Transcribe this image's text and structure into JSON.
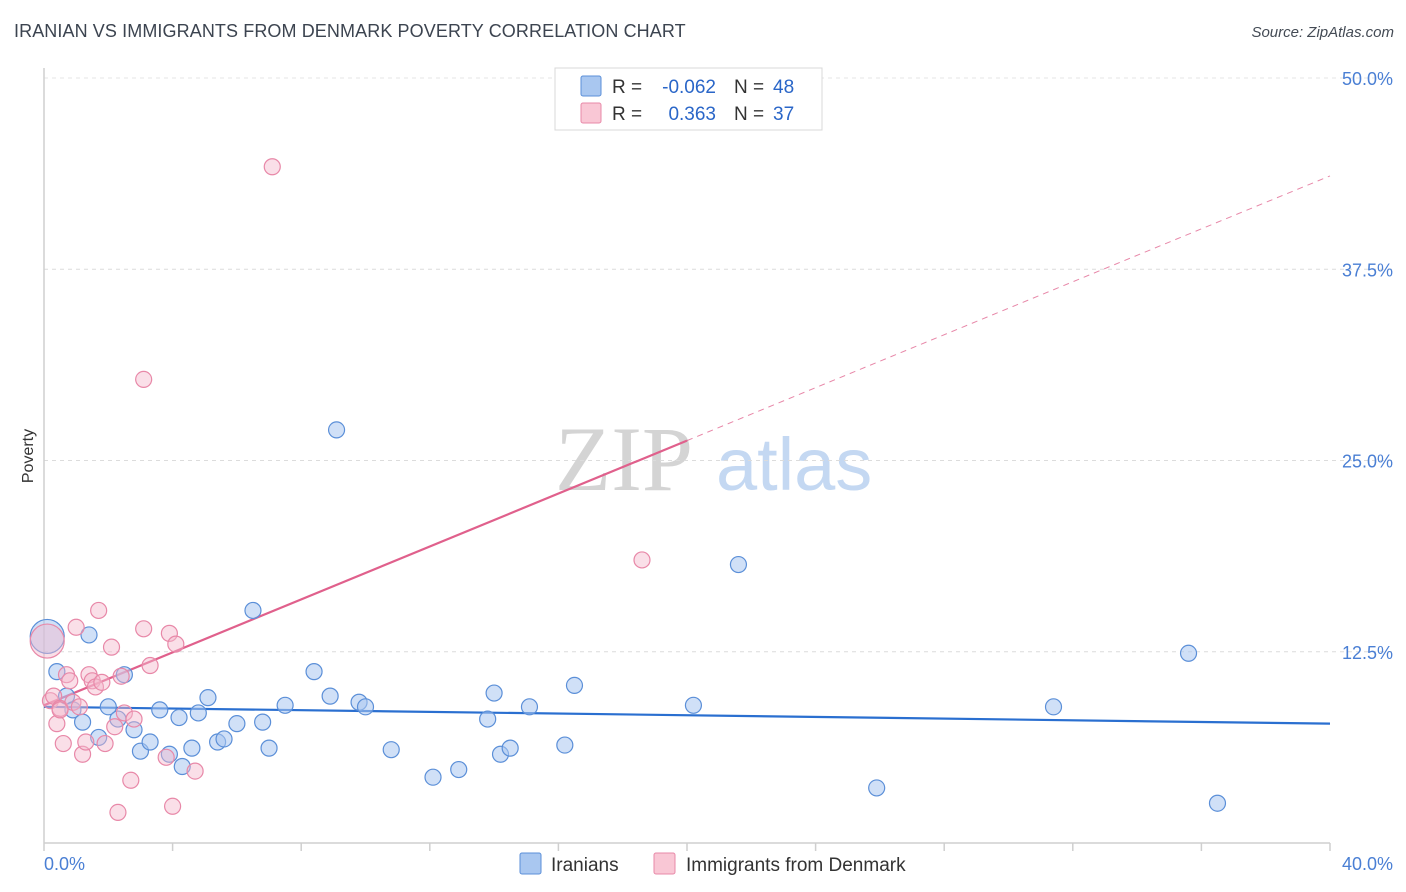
{
  "title": "IRANIAN VS IMMIGRANTS FROM DENMARK POVERTY CORRELATION CHART",
  "source": "Source: ZipAtlas.com",
  "watermark": {
    "zip": "ZIP",
    "atlas": "atlas"
  },
  "colors": {
    "blue_fill": "#a9c7f0",
    "blue_stroke": "#5b8fd8",
    "blue_line": "#2a6fd0",
    "pink_fill": "#f5b8cb",
    "pink_stroke": "#e888a8",
    "pink_line": "#e0608c"
  },
  "legend_top": [
    {
      "r_label": "R =",
      "r_value": "-0.062",
      "n_label": "N =",
      "n_value": "48",
      "color": "blue"
    },
    {
      "r_label": "R =",
      "r_value": "0.363",
      "n_label": "N =",
      "n_value": "37",
      "color": "pink"
    }
  ],
  "legend_bottom": [
    {
      "label": "Iranians",
      "color": "blue"
    },
    {
      "label": "Immigrants from Denmark",
      "color": "pink"
    }
  ],
  "chart_data": {
    "type": "scatter",
    "ylabel": "Poverty",
    "xlim": [
      0,
      40
    ],
    "ylim": [
      0,
      50
    ],
    "x_tick_labels": [
      {
        "value": 0,
        "label": "0.0%"
      },
      {
        "value": 40,
        "label": "40.0%"
      }
    ],
    "y_tick_labels": [
      {
        "value": 12.5,
        "label": "12.5%"
      },
      {
        "value": 25,
        "label": "25.0%"
      },
      {
        "value": 37.5,
        "label": "37.5%"
      },
      {
        "value": 50,
        "label": "50.0%"
      }
    ],
    "series": [
      {
        "name": "Iranians",
        "color": "blue",
        "trend": {
          "x": [
            0,
            40
          ],
          "y": [
            8.9,
            7.8
          ],
          "dashed_from": null
        },
        "points": [
          {
            "x": 0.1,
            "y": 13.5,
            "big": true
          },
          {
            "x": 0.4,
            "y": 11.2
          },
          {
            "x": 0.7,
            "y": 9.6
          },
          {
            "x": 0.9,
            "y": 8.7
          },
          {
            "x": 1.2,
            "y": 7.9
          },
          {
            "x": 1.4,
            "y": 13.6
          },
          {
            "x": 1.7,
            "y": 6.9
          },
          {
            "x": 2.0,
            "y": 8.9
          },
          {
            "x": 2.3,
            "y": 8.1
          },
          {
            "x": 2.5,
            "y": 11.0
          },
          {
            "x": 2.8,
            "y": 7.4
          },
          {
            "x": 3.0,
            "y": 6.0
          },
          {
            "x": 3.3,
            "y": 6.6
          },
          {
            "x": 3.6,
            "y": 8.7
          },
          {
            "x": 3.9,
            "y": 5.8
          },
          {
            "x": 4.2,
            "y": 8.2
          },
          {
            "x": 4.3,
            "y": 5.0
          },
          {
            "x": 4.6,
            "y": 6.2
          },
          {
            "x": 4.8,
            "y": 8.5
          },
          {
            "x": 5.1,
            "y": 9.5
          },
          {
            "x": 5.4,
            "y": 6.6
          },
          {
            "x": 5.6,
            "y": 6.8
          },
          {
            "x": 6.0,
            "y": 7.8
          },
          {
            "x": 6.5,
            "y": 15.2
          },
          {
            "x": 6.8,
            "y": 7.9
          },
          {
            "x": 7.0,
            "y": 6.2
          },
          {
            "x": 7.5,
            "y": 9.0
          },
          {
            "x": 8.4,
            "y": 11.2
          },
          {
            "x": 8.9,
            "y": 9.6
          },
          {
            "x": 9.1,
            "y": 27.0
          },
          {
            "x": 9.8,
            "y": 9.2
          },
          {
            "x": 10.0,
            "y": 8.9
          },
          {
            "x": 10.8,
            "y": 6.1
          },
          {
            "x": 12.1,
            "y": 4.3
          },
          {
            "x": 12.9,
            "y": 4.8
          },
          {
            "x": 13.8,
            "y": 8.1
          },
          {
            "x": 14.0,
            "y": 9.8
          },
          {
            "x": 14.2,
            "y": 5.8
          },
          {
            "x": 14.5,
            "y": 6.2
          },
          {
            "x": 15.1,
            "y": 8.9
          },
          {
            "x": 16.2,
            "y": 6.4
          },
          {
            "x": 16.5,
            "y": 10.3
          },
          {
            "x": 20.2,
            "y": 9.0
          },
          {
            "x": 21.6,
            "y": 18.2
          },
          {
            "x": 25.9,
            "y": 3.6
          },
          {
            "x": 31.4,
            "y": 8.9
          },
          {
            "x": 35.6,
            "y": 12.4
          },
          {
            "x": 36.5,
            "y": 2.6
          }
        ]
      },
      {
        "name": "Immigrants from Denmark",
        "color": "pink",
        "trend": {
          "x": [
            0,
            40
          ],
          "y": [
            9.0,
            43.6
          ],
          "dashed_from": 20.0
        },
        "points": [
          {
            "x": 0.1,
            "y": 13.2,
            "big": true
          },
          {
            "x": 0.2,
            "y": 9.3
          },
          {
            "x": 0.3,
            "y": 9.6
          },
          {
            "x": 0.4,
            "y": 7.8
          },
          {
            "x": 0.5,
            "y": 8.8
          },
          {
            "x": 0.6,
            "y": 6.5
          },
          {
            "x": 0.7,
            "y": 11.0
          },
          {
            "x": 0.8,
            "y": 10.6
          },
          {
            "x": 0.9,
            "y": 9.2
          },
          {
            "x": 1.0,
            "y": 14.1
          },
          {
            "x": 1.1,
            "y": 8.9
          },
          {
            "x": 1.2,
            "y": 5.8
          },
          {
            "x": 1.3,
            "y": 6.6
          },
          {
            "x": 1.4,
            "y": 11.0
          },
          {
            "x": 1.5,
            "y": 10.6
          },
          {
            "x": 1.6,
            "y": 10.2
          },
          {
            "x": 1.7,
            "y": 15.2
          },
          {
            "x": 1.8,
            "y": 10.5
          },
          {
            "x": 1.9,
            "y": 6.5
          },
          {
            "x": 2.1,
            "y": 12.8
          },
          {
            "x": 2.2,
            "y": 7.6
          },
          {
            "x": 2.3,
            "y": 2.0
          },
          {
            "x": 2.4,
            "y": 10.9
          },
          {
            "x": 2.5,
            "y": 8.5
          },
          {
            "x": 2.7,
            "y": 4.1
          },
          {
            "x": 2.8,
            "y": 8.1
          },
          {
            "x": 3.1,
            "y": 14.0
          },
          {
            "x": 3.1,
            "y": 30.3
          },
          {
            "x": 3.3,
            "y": 11.6
          },
          {
            "x": 3.8,
            "y": 5.6
          },
          {
            "x": 3.9,
            "y": 13.7
          },
          {
            "x": 4.0,
            "y": 2.4
          },
          {
            "x": 4.1,
            "y": 13.0
          },
          {
            "x": 4.7,
            "y": 4.7
          },
          {
            "x": 7.1,
            "y": 44.2
          },
          {
            "x": 18.6,
            "y": 18.5
          },
          {
            "x": 0.5,
            "y": 8.7
          }
        ]
      }
    ]
  }
}
